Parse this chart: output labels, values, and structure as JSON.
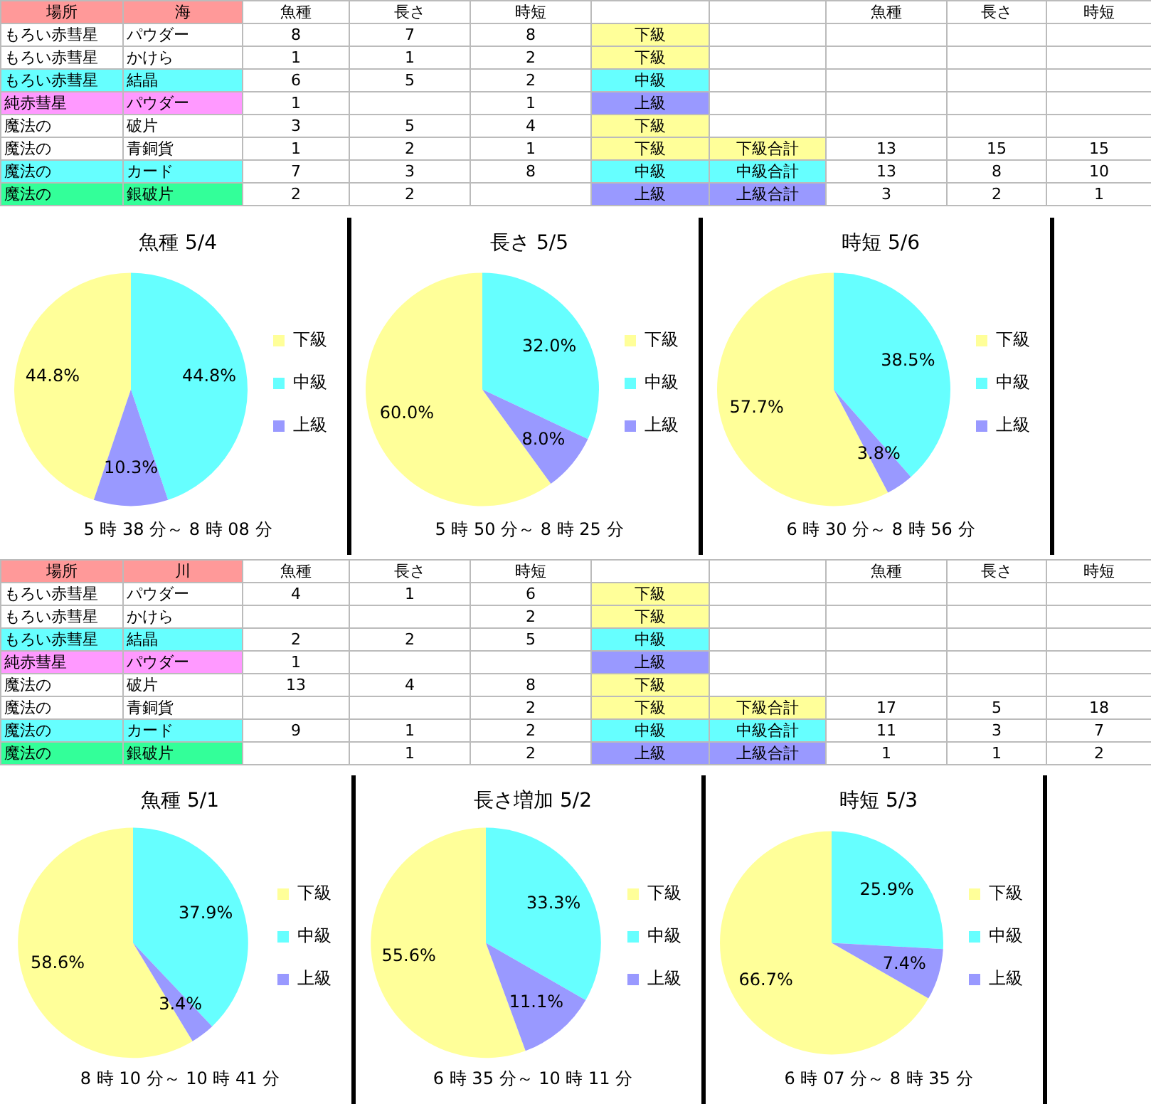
{
  "chart_data": [
    {
      "type": "other",
      "categories": [
        "場所",
        "海",
        "魚種",
        "長さ",
        "時短",
        null,
        null,
        "魚種",
        "長さ",
        "時短"
      ],
      "cell_labels": [
        [
          "もろい赤彗星",
          "パウダー",
          "8",
          "7",
          "8",
          "下級",
          null,
          null,
          null,
          null
        ],
        [
          "もろい赤彗星",
          "かけら",
          "1",
          "1",
          "2",
          "下級",
          null,
          null,
          null,
          null
        ],
        [
          "もろい赤彗星",
          "結晶",
          "6",
          "5",
          "2",
          "中級",
          null,
          null,
          null,
          null
        ],
        [
          "純赤彗星",
          "パウダー",
          "1",
          null,
          "1",
          "上級",
          null,
          null,
          null,
          null
        ],
        [
          "魔法の",
          "破片",
          "3",
          "5",
          "4",
          "下級",
          null,
          null,
          null,
          null
        ],
        [
          "魔法の",
          "青銅貨",
          "1",
          "2",
          "1",
          "下級",
          "下級合計",
          "13",
          "15",
          "15"
        ],
        [
          "魔法の",
          "カード",
          "7",
          "3",
          "8",
          "中級",
          "中級合計",
          "13",
          "8",
          "10"
        ],
        [
          "魔法の",
          "銀破片",
          "2",
          "2",
          null,
          "上級",
          "上級合計",
          "3",
          "2",
          "1"
        ]
      ],
      "colors": [
        [
          null,
          null,
          null,
          null,
          null,
          "#ffff99",
          null,
          null,
          null,
          null
        ],
        [
          null,
          null,
          null,
          null,
          null,
          "#ffff99",
          null,
          null,
          null,
          null
        ],
        [
          "#66ffff",
          "#66ffff",
          null,
          null,
          null,
          "#66ffff",
          null,
          null,
          null,
          null
        ],
        [
          "#ff99ff",
          "#ff99ff",
          null,
          null,
          null,
          "#9999ff",
          null,
          null,
          null,
          null
        ],
        [
          null,
          null,
          null,
          null,
          null,
          "#ffff99",
          null,
          null,
          null,
          null
        ],
        [
          null,
          null,
          null,
          null,
          null,
          "#ffff99",
          "#ffff99",
          null,
          null,
          null
        ],
        [
          "#66ffff",
          "#66ffff",
          null,
          null,
          null,
          "#66ffff",
          "#66ffff",
          null,
          null,
          null
        ],
        [
          "#33ff99",
          "#33ff99",
          null,
          null,
          null,
          "#9999ff",
          "#9999ff",
          null,
          null,
          null
        ]
      ]
    },
    {
      "type": "pie",
      "title": "魚種 5/4",
      "categories": [
        "下級",
        "中級",
        "上級"
      ],
      "values": [
        44.8,
        44.8,
        10.3
      ],
      "value_labels": [
        "44.8%",
        "44.8%",
        "10.3%"
      ],
      "colors": [
        "#ffff99",
        "#66ffff",
        "#9999ff"
      ],
      "legend": "right",
      "annotations": [
        "5 時 38 分～ 8 時 08 分"
      ]
    },
    {
      "type": "pie",
      "title": "長さ 5/5",
      "categories": [
        "下級",
        "中級",
        "上級"
      ],
      "values": [
        60.0,
        32.0,
        8.0
      ],
      "value_labels": [
        "60.0%",
        "32.0%",
        "8.0%"
      ],
      "colors": [
        "#ffff99",
        "#66ffff",
        "#9999ff"
      ],
      "legend": "right",
      "annotations": [
        "5 時 50 分～ 8 時 25 分"
      ]
    },
    {
      "type": "pie",
      "title": "時短 5/6",
      "categories": [
        "下級",
        "中級",
        "上級"
      ],
      "values": [
        57.7,
        38.5,
        3.8
      ],
      "value_labels": [
        "57.7%",
        "38.5%",
        "3.8%"
      ],
      "colors": [
        "#ffff99",
        "#66ffff",
        "#9999ff"
      ],
      "legend": "right",
      "annotations": [
        "6 時 30 分～ 8 時 56 分"
      ]
    },
    {
      "type": "other",
      "categories": [
        "場所",
        "川",
        "魚種",
        "長さ",
        "時短",
        null,
        null,
        "魚種",
        "長さ",
        "時短"
      ],
      "cell_labels": [
        [
          "もろい赤彗星",
          "パウダー",
          "4",
          "1",
          "6",
          "下級",
          null,
          null,
          null,
          null
        ],
        [
          "もろい赤彗星",
          "かけら",
          null,
          null,
          "2",
          "下級",
          null,
          null,
          null,
          null
        ],
        [
          "もろい赤彗星",
          "結晶",
          "2",
          "2",
          "5",
          "中級",
          null,
          null,
          null,
          null
        ],
        [
          "純赤彗星",
          "パウダー",
          "1",
          null,
          null,
          "上級",
          null,
          null,
          null,
          null
        ],
        [
          "魔法の",
          "破片",
          "13",
          "4",
          "8",
          "下級",
          null,
          null,
          null,
          null
        ],
        [
          "魔法の",
          "青銅貨",
          null,
          null,
          "2",
          "下級",
          "下級合計",
          "17",
          "5",
          "18"
        ],
        [
          "魔法の",
          "カード",
          "9",
          "1",
          "2",
          "中級",
          "中級合計",
          "11",
          "3",
          "7"
        ],
        [
          "魔法の",
          "銀破片",
          null,
          "1",
          "2",
          "上級",
          "上級合計",
          "1",
          "1",
          "2"
        ]
      ],
      "colors": [
        [
          null,
          null,
          null,
          null,
          null,
          "#ffff99",
          null,
          null,
          null,
          null
        ],
        [
          null,
          null,
          null,
          null,
          null,
          "#ffff99",
          null,
          null,
          null,
          null
        ],
        [
          "#66ffff",
          "#66ffff",
          null,
          null,
          null,
          "#66ffff",
          null,
          null,
          null,
          null
        ],
        [
          "#ff99ff",
          "#ff99ff",
          null,
          null,
          null,
          "#9999ff",
          null,
          null,
          null,
          null
        ],
        [
          null,
          null,
          null,
          null,
          null,
          "#ffff99",
          null,
          null,
          null,
          null
        ],
        [
          null,
          null,
          null,
          null,
          null,
          "#ffff99",
          "#ffff99",
          null,
          null,
          null
        ],
        [
          "#66ffff",
          "#66ffff",
          null,
          null,
          null,
          "#66ffff",
          "#66ffff",
          null,
          null,
          null
        ],
        [
          "#33ff99",
          "#33ff99",
          null,
          null,
          null,
          "#9999ff",
          "#9999ff",
          null,
          null,
          null
        ]
      ]
    },
    {
      "type": "pie",
      "title": "魚種 5/1",
      "categories": [
        "下級",
        "中級",
        "上級"
      ],
      "values": [
        58.6,
        37.9,
        3.4
      ],
      "value_labels": [
        "58.6%",
        "37.9%",
        "3.4%"
      ],
      "colors": [
        "#ffff99",
        "#66ffff",
        "#9999ff"
      ],
      "legend": "right",
      "annotations": [
        "8 時 10 分～ 10 時 41 分"
      ]
    },
    {
      "type": "pie",
      "title": "長さ増加 5/2",
      "categories": [
        "下級",
        "中級",
        "上級"
      ],
      "values": [
        55.6,
        33.3,
        11.1
      ],
      "value_labels": [
        "55.6%",
        "33.3%",
        "11.1%"
      ],
      "colors": [
        "#ffff99",
        "#66ffff",
        "#9999ff"
      ],
      "legend": "right",
      "annotations": [
        "6 時 35 分～ 10 時 11 分"
      ]
    },
    {
      "type": "pie",
      "title": "時短 5/3",
      "categories": [
        "下級",
        "中級",
        "上級"
      ],
      "values": [
        66.7,
        25.9,
        7.4
      ],
      "value_labels": [
        "66.7%",
        "25.9%",
        "7.4%"
      ],
      "colors": [
        "#ffff99",
        "#66ffff",
        "#9999ff"
      ],
      "legend": "right",
      "annotations": [
        "6 時 07 分～ 8 時 35 分"
      ]
    }
  ]
}
